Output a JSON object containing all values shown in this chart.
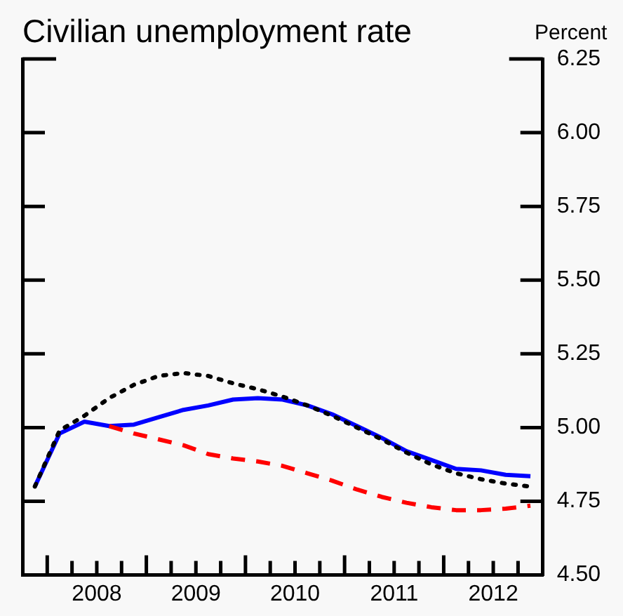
{
  "chart_data": {
    "type": "line",
    "title": "Civilian unemployment rate",
    "ylabel": "Percent",
    "x": [
      2007.875,
      2008.125,
      2008.375,
      2008.625,
      2008.875,
      2009.125,
      2009.375,
      2009.625,
      2009.875,
      2010.125,
      2010.375,
      2010.625,
      2010.875,
      2011.125,
      2011.375,
      2011.625,
      2011.875,
      2012.125,
      2012.375,
      2012.625,
      2012.875
    ],
    "series": [
      {
        "color": "#000000",
        "line_style": "dotted",
        "values": [
          4.8,
          4.99,
          5.04,
          5.1,
          5.145,
          5.175,
          5.185,
          5.175,
          5.15,
          5.13,
          5.105,
          5.075,
          5.04,
          5.0,
          4.96,
          4.915,
          4.875,
          4.845,
          4.825,
          4.81,
          4.8
        ]
      },
      {
        "color": "#ff0000",
        "line_style": "dashed",
        "values": [
          null,
          null,
          null,
          5.005,
          4.98,
          4.96,
          4.94,
          4.91,
          4.895,
          4.885,
          4.87,
          4.845,
          4.82,
          4.79,
          4.765,
          4.745,
          4.73,
          4.72,
          4.72,
          4.725,
          4.735
        ]
      },
      {
        "color": "#0000ff",
        "line_style": "solid",
        "values": [
          4.8,
          4.98,
          5.02,
          5.005,
          5.01,
          5.035,
          5.06,
          5.075,
          5.095,
          5.1,
          5.095,
          5.075,
          5.045,
          5.005,
          4.965,
          4.92,
          4.89,
          4.86,
          4.855,
          4.84,
          4.835
        ]
      }
    ],
    "xlim": [
      2007.75,
      2013
    ],
    "xticks": [
      {
        "value": 2008,
        "label": null
      },
      {
        "value": 2008.25,
        "label": null
      },
      {
        "value": 2008.5,
        "label": "2008"
      },
      {
        "value": 2008.75,
        "label": null
      },
      {
        "value": 2009,
        "label": null
      },
      {
        "value": 2009.25,
        "label": null
      },
      {
        "value": 2009.5,
        "label": "2009"
      },
      {
        "value": 2009.75,
        "label": null
      },
      {
        "value": 2010,
        "label": null
      },
      {
        "value": 2010.25,
        "label": null
      },
      {
        "value": 2010.5,
        "label": "2010"
      },
      {
        "value": 2010.75,
        "label": null
      },
      {
        "value": 2011,
        "label": null
      },
      {
        "value": 2011.25,
        "label": null
      },
      {
        "value": 2011.5,
        "label": "2011"
      },
      {
        "value": 2011.75,
        "label": null
      },
      {
        "value": 2012,
        "label": null
      },
      {
        "value": 2012.25,
        "label": null
      },
      {
        "value": 2012.5,
        "label": "2012"
      },
      {
        "value": 2012.75,
        "label": null
      }
    ],
    "ylim": [
      4.5,
      6.25
    ],
    "yticks": [
      {
        "value": 4.5,
        "label": "4.50"
      },
      {
        "value": 4.75,
        "label": "4.75"
      },
      {
        "value": 5.0,
        "label": "5.00"
      },
      {
        "value": 5.25,
        "label": "5.25"
      },
      {
        "value": 5.5,
        "label": "5.50"
      },
      {
        "value": 5.75,
        "label": "5.75"
      },
      {
        "value": 6.0,
        "label": "6.00"
      },
      {
        "value": 6.25,
        "label": "6.25"
      }
    ],
    "grid": false,
    "legend": false,
    "marker": "none"
  }
}
